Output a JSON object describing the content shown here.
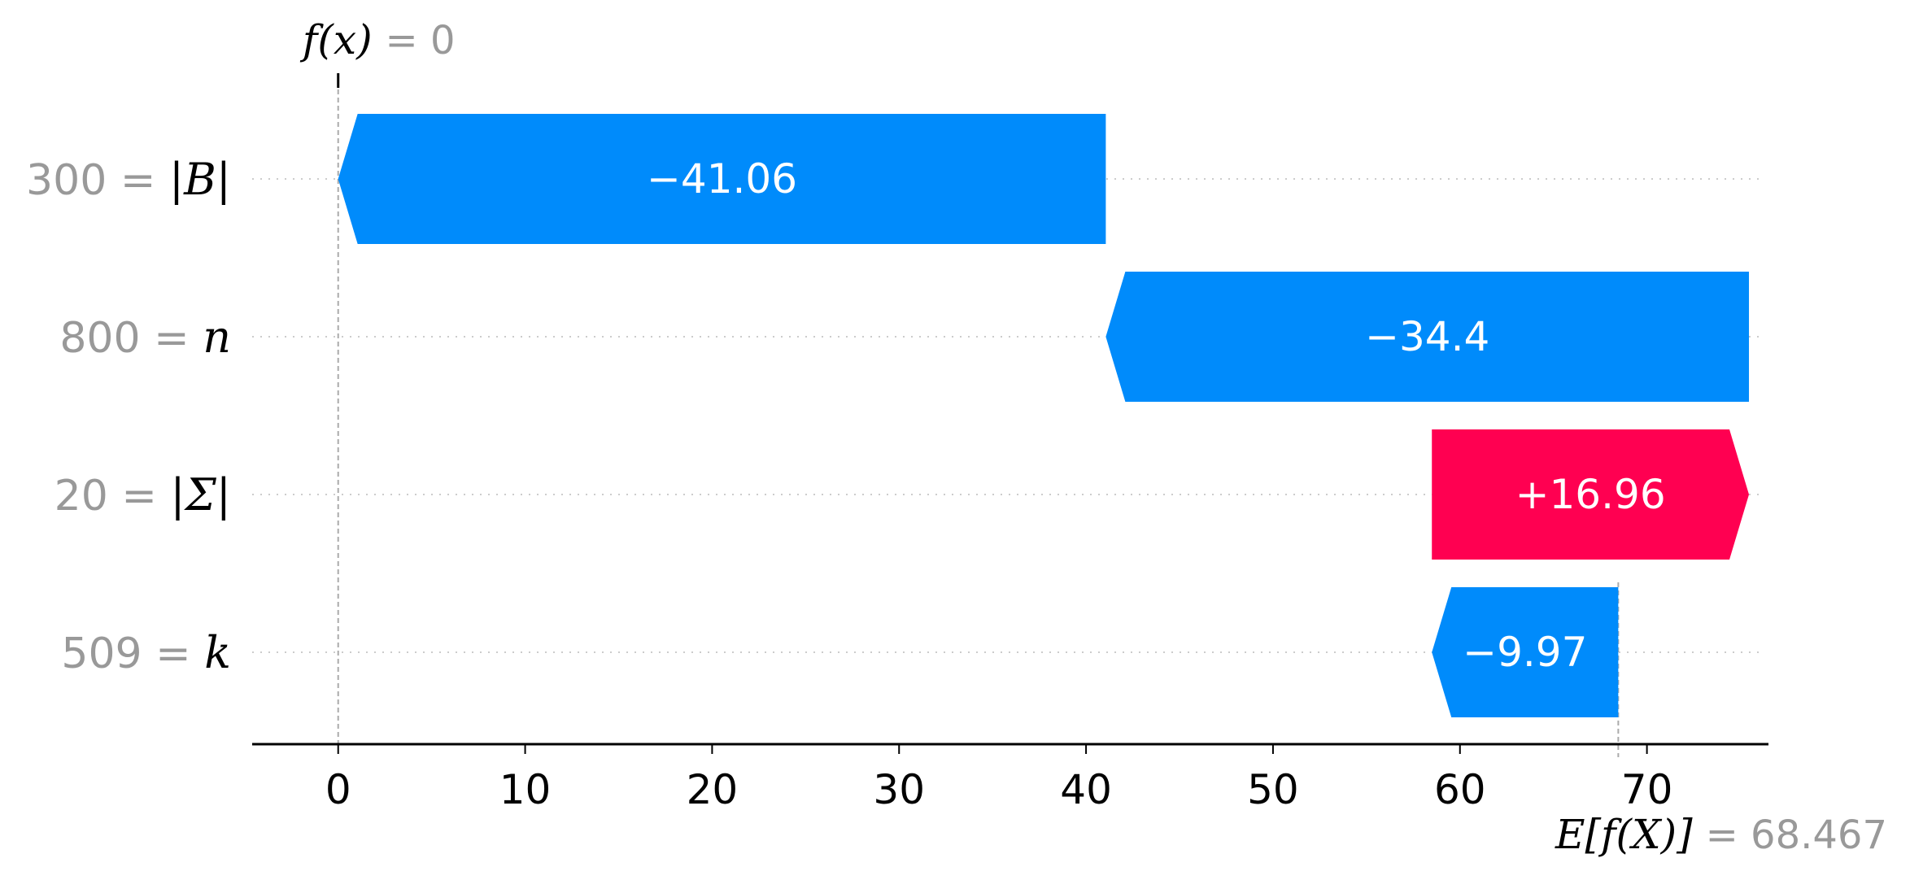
{
  "chart_data": {
    "type": "bar",
    "subtype": "waterfall",
    "base_value_label": "E[f(X)]",
    "base_value_text": "= 68.467",
    "base_value": 68.467,
    "output_label": "f(x)",
    "output_value_text": "= 0",
    "output_value": 0,
    "xlim": [
      -4.6,
      76.5
    ],
    "xticks": [
      0,
      10,
      20,
      30,
      40,
      50,
      60,
      70
    ],
    "xtick_labels": [
      "0",
      "10",
      "20",
      "30",
      "40",
      "50",
      "60",
      "70"
    ],
    "grid": "horizontal dotted per feature row",
    "colors": {
      "positive": "#ff0051",
      "negative": "#008bfb",
      "axis": "#000000",
      "muted": "#999999"
    },
    "features": [
      {
        "value": "300",
        "name": "|B|",
        "contribution": -41.06,
        "label": "−41.06"
      },
      {
        "value": "800",
        "name": "n",
        "contribution": -34.4,
        "label": "−34.4"
      },
      {
        "value": "20",
        "name": "|Σ|",
        "contribution": 16.96,
        "label": "+16.96"
      },
      {
        "value": "509",
        "name": "k",
        "contribution": -9.97,
        "label": "−9.97"
      }
    ]
  }
}
